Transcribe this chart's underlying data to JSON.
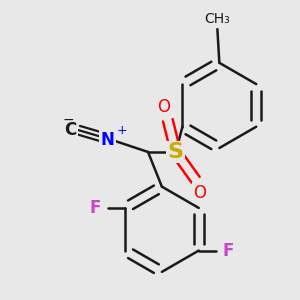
{
  "bg_color": "#e8e8e8",
  "bond_color": "#1a1a1a",
  "bond_width": 1.8,
  "atom_colors": {
    "C": "#1a1a1a",
    "N": "#0000ff",
    "S": "#ccaa00",
    "O": "#ff0000",
    "F": "#cc44cc"
  },
  "figsize": [
    3.0,
    3.0
  ],
  "dpi": 100
}
